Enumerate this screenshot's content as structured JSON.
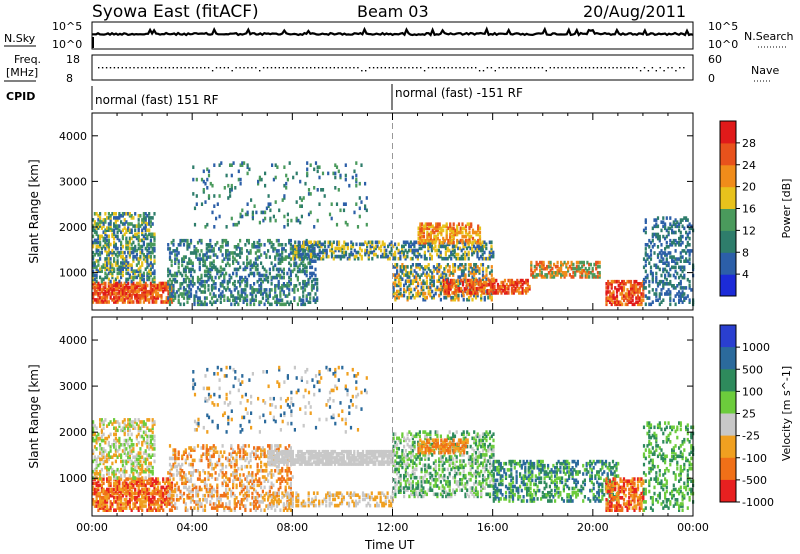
{
  "header": {
    "left_title": "Syowa East (fitACF)",
    "center_title": "Beam 03",
    "date": "20/Aug/2011"
  },
  "status_panels": {
    "nsky_label": "N.Sky",
    "nsky_ticks": [
      "10^5",
      "10^0"
    ],
    "nsearch_label": "N.Search",
    "nsearch_ticks": [
      "10^5",
      "10^0"
    ],
    "freq_label_1": "Freq.",
    "freq_label_2": "[MHz]",
    "freq_ticks": [
      "18",
      "8"
    ],
    "nave_label": "Nave",
    "nave_ticks": [
      "60",
      "0"
    ],
    "cpid_label": "CPID",
    "cpid_segments": [
      "normal (fast) 151 RF",
      "normal (fast) -151 RF"
    ]
  },
  "chart_data": [
    {
      "type": "heatmap",
      "title": "",
      "ylabel": "Slant Range [km]",
      "xlabel": "",
      "x_ticks": [
        "00:00",
        "04:00",
        "08:00",
        "12:00",
        "16:00",
        "20:00",
        "00:00"
      ],
      "y_ticks": [
        "1000",
        "2000",
        "3000",
        "4000"
      ],
      "ylim": [
        180,
        4500
      ],
      "xlim_hours": [
        0,
        24
      ],
      "colorbar": {
        "label": "Power [dB]",
        "ticks": [
          "4",
          "8",
          "12",
          "16",
          "20",
          "24",
          "28"
        ],
        "colors": [
          "#1c2bd8",
          "#2c5fa8",
          "#2e7d6b",
          "#4a9a5c",
          "#e8c21c",
          "#f08c1a",
          "#e8521c",
          "#e01a1a"
        ]
      },
      "features": [
        {
          "name": "strong near-range echoes",
          "range_km": [
            300,
            800
          ],
          "hours": [
            0,
            3
          ],
          "level": "high"
        },
        {
          "name": "evening scatter band",
          "range_km": [
            1300,
            1700
          ],
          "hours": [
            8,
            16
          ],
          "level": "low"
        },
        {
          "name": "descending arc",
          "range_km": [
            900,
            1200
          ],
          "hours": [
            18,
            20
          ],
          "level": "mid"
        }
      ]
    },
    {
      "type": "heatmap",
      "title": "",
      "ylabel": "Slant Range [km]",
      "xlabel": "Time UT",
      "x_ticks": [
        "00:00",
        "04:00",
        "08:00",
        "12:00",
        "16:00",
        "20:00",
        "00:00"
      ],
      "y_ticks": [
        "1000",
        "2000",
        "3000",
        "4000"
      ],
      "ylim": [
        180,
        4500
      ],
      "xlim_hours": [
        0,
        24
      ],
      "colorbar": {
        "label": "Velocity [m s^-1]",
        "ticks": [
          "1000",
          "500",
          "100",
          "25",
          "-25",
          "-100",
          "-500",
          "-1000"
        ],
        "colors": [
          "#2a3fd0",
          "#2b6a9c",
          "#2e8a5c",
          "#6ccc3c",
          "#c8c8c8",
          "#f0a020",
          "#f07018",
          "#e82020"
        ]
      },
      "features": [
        {
          "name": "ground scatter band",
          "range_km": [
            1300,
            1600
          ],
          "hours": [
            7,
            12
          ],
          "level": "grey"
        },
        {
          "name": "receding flow",
          "range_km": [
            300,
            1500
          ],
          "hours": [
            0,
            8
          ],
          "level": "negative"
        },
        {
          "name": "approaching flow",
          "range_km": [
            600,
            2000
          ],
          "hours": [
            12,
            24
          ],
          "level": "positive"
        }
      ]
    }
  ],
  "colors": {
    "background": "#ffffff",
    "axis": "#000000"
  }
}
